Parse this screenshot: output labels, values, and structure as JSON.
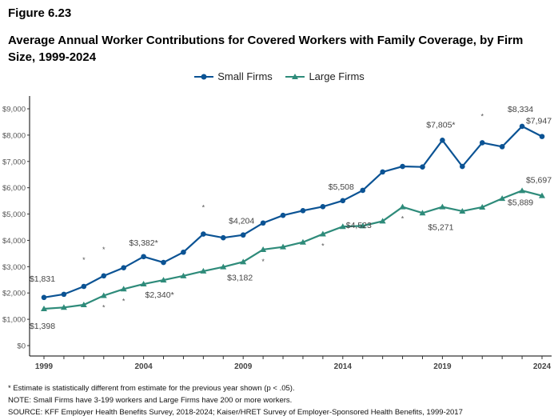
{
  "figure_label": "Figure 6.23",
  "chart_data": {
    "type": "line",
    "title": "Average Annual Worker Contributions for Covered Workers with Family Coverage, by Firm Size, 1999-2024",
    "x": [
      1999,
      2000,
      2001,
      2002,
      2003,
      2004,
      2005,
      2006,
      2007,
      2008,
      2009,
      2010,
      2011,
      2012,
      2013,
      2014,
      2015,
      2016,
      2017,
      2018,
      2019,
      2020,
      2021,
      2022,
      2023,
      2024
    ],
    "x_tick_labels": [
      "1999",
      "2004",
      "2009",
      "2014",
      "2019",
      "2024"
    ],
    "y_tick_labels": [
      "$0",
      "$1,000",
      "$2,000",
      "$3,000",
      "$4,000",
      "$5,000",
      "$6,000",
      "$7,000",
      "$8,000",
      "$9,000"
    ],
    "ylim": [
      0,
      9000
    ],
    "grid": false,
    "legend_position": "top",
    "series": [
      {
        "name": "Small Firms",
        "color": "#0b5394",
        "marker": "circle",
        "values": [
          1831,
          1950,
          2250,
          2650,
          2960,
          3382,
          3160,
          3550,
          4240,
          4100,
          4204,
          4660,
          4950,
          5130,
          5280,
          5508,
          5900,
          6600,
          6810,
          6790,
          7805,
          6810,
          7710,
          7560,
          8334,
          7947
        ]
      },
      {
        "name": "Large Firms",
        "color": "#2e8b7a",
        "marker": "triangle",
        "values": [
          1398,
          1450,
          1550,
          1900,
          2150,
          2340,
          2490,
          2650,
          2830,
          2990,
          3182,
          3650,
          3750,
          3930,
          4240,
          4523,
          4550,
          4730,
          5270,
          5040,
          5271,
          5110,
          5260,
          5590,
          5889,
          5697
        ]
      }
    ],
    "data_labels": [
      {
        "series": 0,
        "year": 1999,
        "text": "$1,831"
      },
      {
        "series": 0,
        "year": 2004,
        "text": "$3,382*"
      },
      {
        "series": 0,
        "year": 2009,
        "text": "$4,204"
      },
      {
        "series": 0,
        "year": 2014,
        "text": "$5,508"
      },
      {
        "series": 0,
        "year": 2019,
        "text": "$7,805*"
      },
      {
        "series": 0,
        "year": 2023,
        "text": "$8,334"
      },
      {
        "series": 0,
        "year": 2024,
        "text": "$7,947"
      },
      {
        "series": 1,
        "year": 1999,
        "text": "$1,398"
      },
      {
        "series": 1,
        "year": 2004,
        "text": "$2,340*"
      },
      {
        "series": 1,
        "year": 2009,
        "text": "$3,182"
      },
      {
        "series": 1,
        "year": 2014,
        "text": "$4,523"
      },
      {
        "series": 1,
        "year": 2019,
        "text": "$5,271"
      },
      {
        "series": 1,
        "year": 2023,
        "text": "$5,889"
      },
      {
        "series": 1,
        "year": 2024,
        "text": "$5,697"
      }
    ],
    "significance_markers": [
      {
        "series": 0,
        "years": [
          2001,
          2002,
          2007,
          2021
        ],
        "text": "*"
      },
      {
        "series": 1,
        "years": [
          2002,
          2003,
          2010,
          2013,
          2017
        ],
        "text": "*"
      }
    ]
  },
  "notes": [
    "* Estimate is statistically different from estimate for the previous year shown (p < .05).",
    "NOTE: Small Firms have 3-199 workers and Large Firms have 200 or more workers.",
    "SOURCE: KFF Employer Health Benefits Survey, 2018-2024; Kaiser/HRET Survey of Employer-Sponsored Health Benefits, 1999-2017"
  ]
}
